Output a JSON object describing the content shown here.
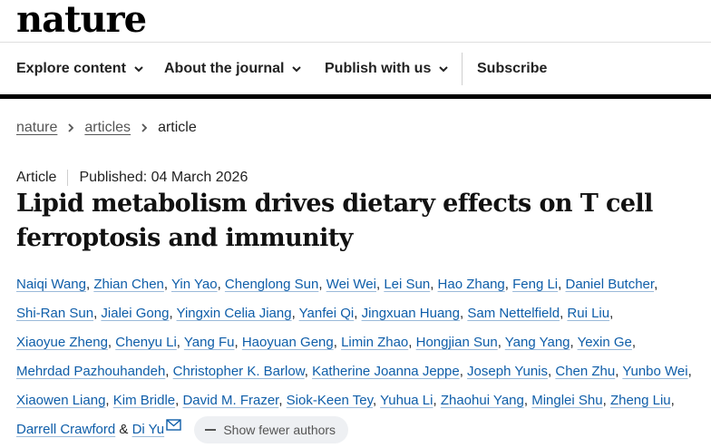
{
  "brand": {
    "logo": "nature"
  },
  "nav": {
    "items": [
      {
        "label": "Explore content"
      },
      {
        "label": "About the journal"
      },
      {
        "label": "Publish with us"
      },
      {
        "label": "Subscribe"
      }
    ]
  },
  "breadcrumb": {
    "items": [
      "nature",
      "articles",
      "article"
    ]
  },
  "article": {
    "type": "Article",
    "published": "Published: 04 March 2026",
    "title_line1": "Lipid metabolism drives dietary effects on T cell",
    "title_line2": "ferroptosis and immunity",
    "authors": [
      "Naiqi Wang",
      "Zhian Chen",
      "Yin Yao",
      "Chenglong Sun",
      "Wei Wei",
      "Lei Sun",
      "Hao Zhang",
      "Feng Li",
      "Daniel Butcher",
      "Shi-Ran Sun",
      "Jialei Gong",
      "Yingxin Celia Jiang",
      "Yanfei Qi",
      "Jingxuan Huang",
      "Sam Nettelfield",
      "Rui Liu",
      "Xiaoyue Zheng",
      "Chenyu Li",
      "Yang Fu",
      "Haoyuan Geng",
      "Limin Zhao",
      "Hongjian Sun",
      "Yang Yang",
      "Yexin Ge",
      "Mehrdad Pazhouhandeh",
      "Christopher K. Barlow",
      "Katherine Joanna Jeppe",
      "Joseph Yunis",
      "Chen Zhu",
      "Yunbo Wei",
      "Xiaowen Liang",
      "Kim Bridle",
      "David M. Frazer",
      "Siok-Keen Tey",
      "Yuhua Li",
      "Zhaohui Yang",
      "Minglei Shu",
      "Zheng Liu",
      "Darrell Crawford",
      "Di Yu"
    ],
    "final_conjunction": "&",
    "show_fewer_label": "Show fewer authors"
  }
}
